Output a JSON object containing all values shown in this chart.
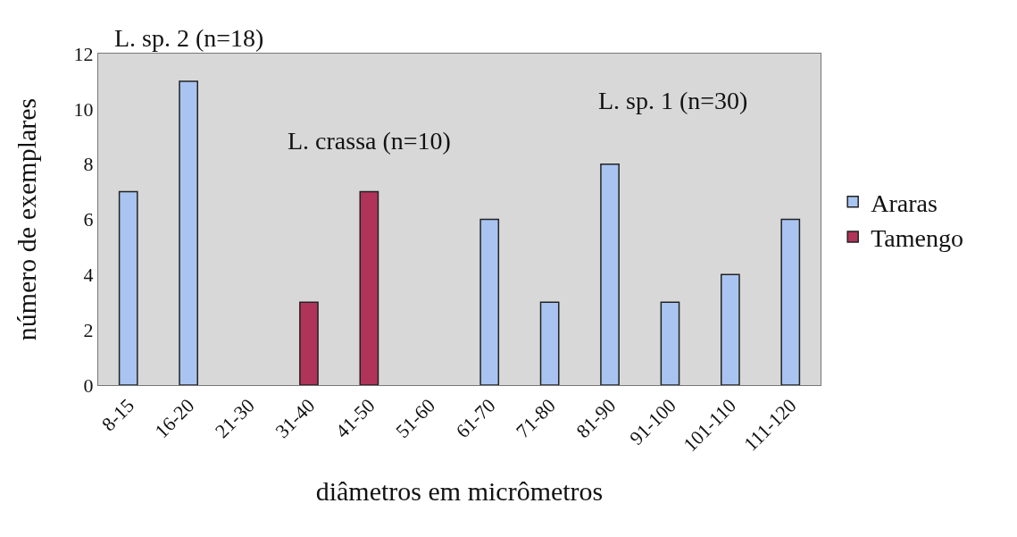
{
  "chart_data": {
    "type": "bar",
    "xlabel": "diâmetros em micrômetros",
    "ylabel": "número de exemplares",
    "categories": [
      "8-15",
      "16-20",
      "21-30",
      "31-40",
      "41-50",
      "51-60",
      "61-70",
      "71-80",
      "81-90",
      "91-100",
      "101-110",
      "111-120"
    ],
    "series": [
      {
        "name": "Araras",
        "color": "#a9c4f0",
        "values": [
          7,
          11,
          null,
          null,
          null,
          null,
          6,
          3,
          8,
          3,
          4,
          6
        ]
      },
      {
        "name": "Tamengo",
        "color": "#b0335a",
        "values": [
          null,
          null,
          null,
          3,
          7,
          null,
          null,
          null,
          null,
          null,
          null,
          null
        ]
      }
    ],
    "ylim": [
      0,
      12
    ],
    "yticks": [
      0,
      2,
      4,
      6,
      8,
      10,
      12
    ],
    "grid": false,
    "legend": "right",
    "annotations": [
      "L. sp. 2 (n=18)",
      "L. crassa (n=10)",
      "L. sp. 1 (n=30)"
    ]
  }
}
